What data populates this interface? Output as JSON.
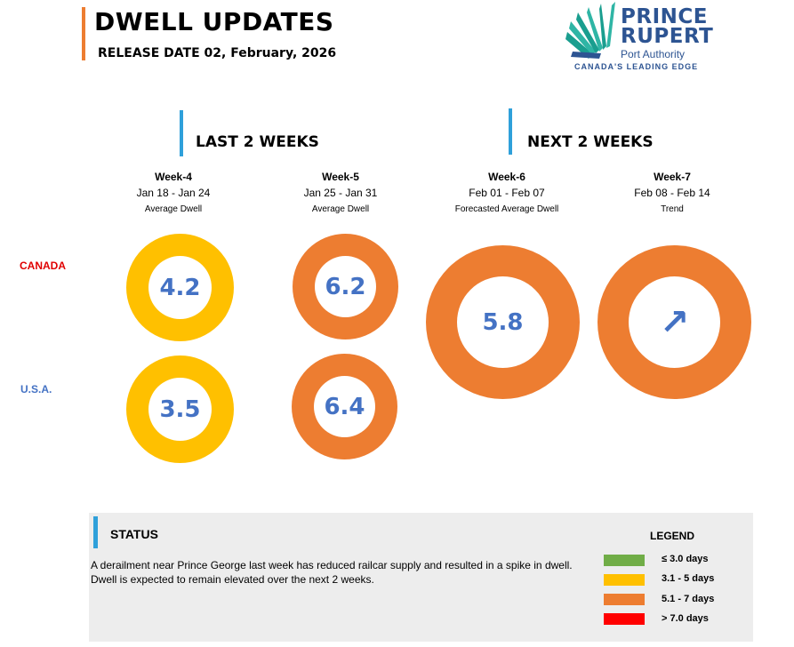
{
  "header": {
    "title": "DWELL UPDATES",
    "release": "RELEASE DATE 02, February, 2026"
  },
  "logo": {
    "line1": "PRINCE",
    "line2": "RUPERT",
    "line3": "Port Authority",
    "tagline": "CANADA'S LEADING EDGE"
  },
  "sections": {
    "last": "LAST 2 WEEKS",
    "next": "NEXT 2 WEEKS"
  },
  "columns": [
    {
      "week": "Week-4",
      "dates": "Jan 18 - Jan 24",
      "sub": "Average Dwell"
    },
    {
      "week": "Week-5",
      "dates": "Jan 25 - Jan 31",
      "sub": "Average Dwell"
    },
    {
      "week": "Week-6",
      "dates": "Feb 01 - Feb 07",
      "sub": "Forecasted Average Dwell"
    },
    {
      "week": "Week-7",
      "dates": "Feb 08 - Feb 14",
      "sub": "Trend"
    }
  ],
  "countries": {
    "canada": "CANADA",
    "usa": "U.S.A."
  },
  "values": {
    "canada_w4": "4.2",
    "canada_w5": "6.2",
    "usa_w4": "3.5",
    "usa_w5": "6.4",
    "forecast_w6": "5.8",
    "trend_w7": "↗"
  },
  "colors": {
    "yellow": "#FFC000",
    "orange": "#ED7D31",
    "green": "#70AD47",
    "red": "#FF0000",
    "value_text": "#4472C4",
    "canada_label": "#E00000",
    "usa_label": "#4472C4"
  },
  "status": {
    "title": "STATUS",
    "text": " A derailment near Prince George last week has reduced railcar supply and resulted in a spike in dwell. Dwell is expected to remain elevated over the next 2 weeks."
  },
  "legend": {
    "title": "LEGEND",
    "items": [
      {
        "label": "≤ 3.0 days",
        "color": "#70AD47"
      },
      {
        "label": "3.1 - 5 days",
        "color": "#FFC000"
      },
      {
        "label": "5.1 - 7 days",
        "color": "#ED7D31"
      },
      {
        "label": "> 7.0 days",
        "color": "#FF0000"
      }
    ]
  }
}
